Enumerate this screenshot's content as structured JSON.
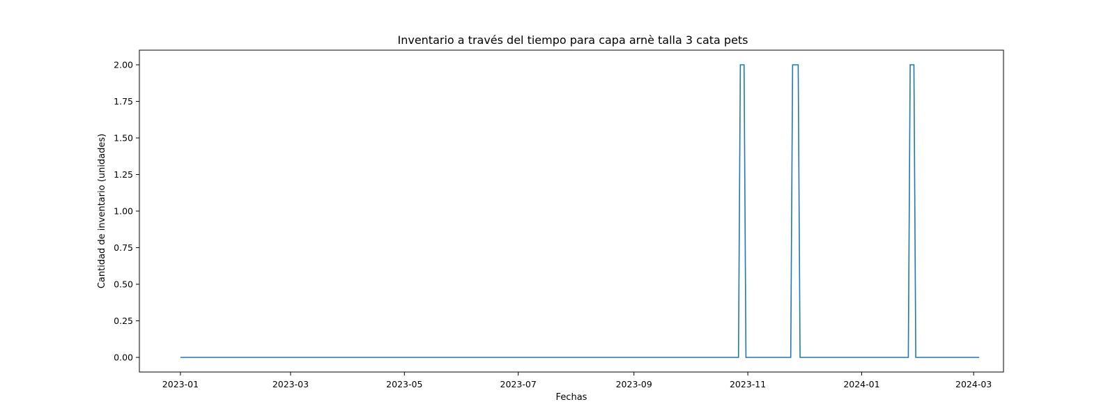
{
  "chart_data": {
    "type": "line",
    "title": "Inventario a través del tiempo para capa arnè talla 3 cata pets",
    "xlabel": "Fechas",
    "ylabel": "Cantidad de inventario (unidades)",
    "xlim": [
      "2022-12-10",
      "2024-03-17"
    ],
    "ylim": [
      -0.1,
      2.1
    ],
    "grid": false,
    "legend": false,
    "colors": {
      "line": "#1f77b4",
      "axes": "#000000"
    },
    "x_ticks": [
      "2023-01",
      "2023-03",
      "2023-05",
      "2023-07",
      "2023-09",
      "2023-11",
      "2024-01",
      "2024-03"
    ],
    "x_tick_dates": [
      "2023-01-01",
      "2023-03-01",
      "2023-05-01",
      "2023-07-01",
      "2023-09-01",
      "2023-11-01",
      "2024-01-01",
      "2024-03-01"
    ],
    "y_ticks": [
      "0.00",
      "0.25",
      "0.50",
      "0.75",
      "1.00",
      "1.25",
      "1.50",
      "1.75",
      "2.00"
    ],
    "y_tick_values": [
      0,
      0.25,
      0.5,
      0.75,
      1,
      1.25,
      1.5,
      1.75,
      2
    ],
    "series": [
      {
        "x": [
          "2023-01-01",
          "2023-10-27",
          "2023-10-28",
          "2023-10-30",
          "2023-10-31",
          "2023-11-24",
          "2023-11-25",
          "2023-11-28",
          "2023-11-29",
          "2024-01-26",
          "2024-01-27",
          "2024-01-29",
          "2024-01-30",
          "2024-03-04"
        ],
        "y": [
          0,
          0,
          2,
          2,
          0,
          0,
          2,
          2,
          0,
          0,
          2,
          2,
          0,
          0
        ]
      }
    ]
  }
}
